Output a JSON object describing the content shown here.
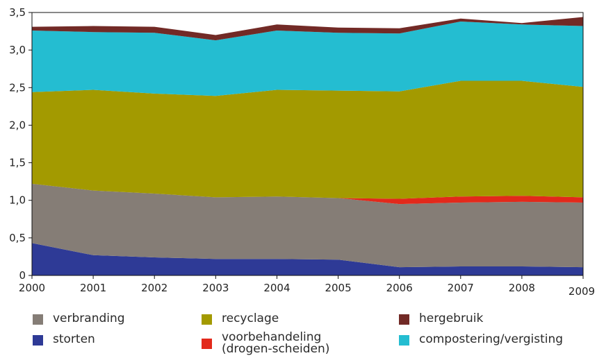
{
  "chart_data": {
    "type": "area",
    "stacked": true,
    "x": [
      "2000",
      "2001",
      "2002",
      "2003",
      "2004",
      "2005",
      "2006",
      "2007",
      "2008",
      "2009"
    ],
    "ylim": [
      0,
      3.5
    ],
    "yticks": [
      "0",
      "0,5",
      "1,0",
      "1,5",
      "2,0",
      "2,5",
      "3,0",
      "3,5"
    ],
    "grid": false,
    "series": [
      {
        "name": "storten",
        "color": "#2e3a96",
        "values": [
          0.43,
          0.27,
          0.24,
          0.22,
          0.22,
          0.21,
          0.11,
          0.12,
          0.12,
          0.11
        ]
      },
      {
        "name": "verbranding",
        "color": "#857d76",
        "values": [
          0.79,
          0.86,
          0.85,
          0.82,
          0.83,
          0.82,
          0.84,
          0.85,
          0.86,
          0.86
        ]
      },
      {
        "name": "voorbehandeling (drogen-scheiden)",
        "color": "#e2291b",
        "values": [
          0.0,
          0.0,
          0.0,
          0.0,
          0.0,
          0.0,
          0.07,
          0.08,
          0.08,
          0.07
        ]
      },
      {
        "name": "recyclage",
        "color": "#a39a00",
        "values": [
          1.22,
          1.34,
          1.33,
          1.35,
          1.42,
          1.43,
          1.43,
          1.54,
          1.53,
          1.47
        ]
      },
      {
        "name": "compostering/vergisting",
        "color": "#24bdd1",
        "values": [
          0.82,
          0.77,
          0.81,
          0.74,
          0.79,
          0.77,
          0.77,
          0.79,
          0.75,
          0.81
        ]
      },
      {
        "name": "hergebruik",
        "color": "#722a26",
        "values": [
          0.05,
          0.08,
          0.08,
          0.07,
          0.08,
          0.07,
          0.07,
          0.04,
          0.02,
          0.12
        ]
      }
    ],
    "legend": [
      {
        "label": "verbranding",
        "series": 1
      },
      {
        "label": "recyclage",
        "series": 3
      },
      {
        "label": "hergebruik",
        "series": 5
      },
      {
        "label": "storten",
        "series": 0
      },
      {
        "label": "voorbehandeling\n(drogen-scheiden)",
        "series": 2
      },
      {
        "label": "compostering/vergisting",
        "series": 4
      }
    ],
    "legend_position": "bottom"
  }
}
